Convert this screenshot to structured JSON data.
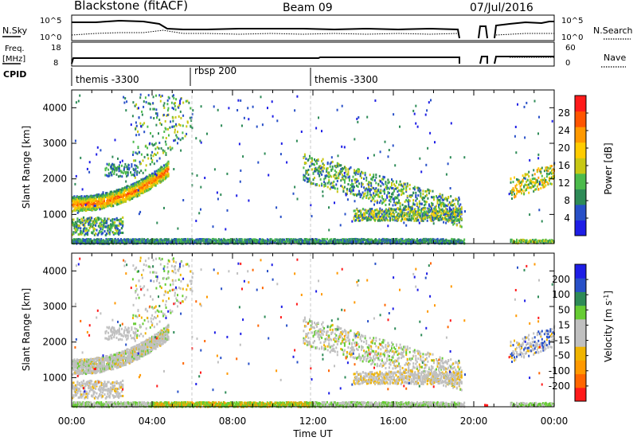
{
  "header": {
    "station": "Blackstone (fitACF)",
    "beam": "Beam 09",
    "date": "07/Jul/2016"
  },
  "top_panels": {
    "nsky_label": "N.Sky",
    "nsearch_label": "N.Search",
    "freq_label_1": "Freq.",
    "freq_label_2": "[MHz]",
    "nave_label": "Nave",
    "cpid_label": "CPID",
    "nsky_ticks": [
      "10^5",
      "10^0"
    ],
    "nsearch_ticks": [
      "10^5",
      "10^0"
    ],
    "freq_ticks": [
      "18",
      "8"
    ],
    "nave_ticks": [
      "60",
      "0"
    ]
  },
  "cpid": {
    "segments": [
      {
        "label": "themis -3300",
        "start_hour": 0
      },
      {
        "label": "rbsp 200",
        "start_hour": 6
      },
      {
        "label": "themis -3300",
        "start_hour": 12
      }
    ]
  },
  "colors": {
    "power": [
      "#1e1ee6",
      "#2850c8",
      "#2e8b57",
      "#4cbb4c",
      "#c8c814",
      "#ffcc00",
      "#ff9900",
      "#ff5500",
      "#ff1a1a"
    ],
    "velocity": [
      "#ff1a1a",
      "#ff6600",
      "#ff9900",
      "#f0b400",
      "#c0c0c0",
      "#c0c0c0",
      "#66cc33",
      "#2e8b57",
      "#2850c8",
      "#1e1ee6"
    ],
    "gray_fill": "#c0c0c0"
  },
  "chart_data": [
    {
      "type": "heatmap",
      "name": "Power",
      "xlabel": "",
      "ylabel": "Slant Range [km]",
      "xlim_hours": [
        0,
        24
      ],
      "ylim": [
        180,
        4500
      ],
      "y_ticks": [
        1000,
        2000,
        3000,
        4000
      ],
      "colorbar_label": "Power [dB]",
      "colorbar_ticks": [
        "4",
        "8",
        "12",
        "16",
        "20",
        "24",
        "28"
      ],
      "colorbar_range": [
        0,
        30
      ],
      "regions": [
        {
          "t": [
            0.0,
            4.8
          ],
          "r": [
            1150,
            1650
          ],
          "desc": "intense echo band rising to ~2400 km",
          "level": 20
        },
        {
          "t": [
            3.0,
            6.0
          ],
          "r": [
            2000,
            4400
          ],
          "desc": "scatter extending to 4400 km",
          "level": 8
        },
        {
          "t": [
            11.5,
            19.4
          ],
          "r": [
            700,
            2400
          ],
          "desc": "descending echo band",
          "level": 8
        },
        {
          "t": [
            0.0,
            19.5
          ],
          "r": [
            200,
            330
          ],
          "desc": "near-range ground/sea scatter",
          "level": 6
        },
        {
          "t": [
            21.8,
            24.0
          ],
          "r": [
            1500,
            2400
          ],
          "desc": "late-day echoes",
          "level": 10
        }
      ]
    },
    {
      "type": "heatmap",
      "name": "Velocity",
      "xlabel": "Time UT",
      "ylabel": "Slant Range [km]",
      "xlim_hours": [
        0,
        24
      ],
      "ylim": [
        180,
        4500
      ],
      "y_ticks": [
        1000,
        2000,
        3000,
        4000
      ],
      "x_ticks": [
        "00:00",
        "04:00",
        "08:00",
        "12:00",
        "16:00",
        "20:00",
        "00:00"
      ],
      "colorbar_label": "Velocity [m s^-1]",
      "colorbar_ticks": [
        "-200",
        "-100",
        "-50",
        "-15",
        "15",
        "50",
        "100",
        "200"
      ],
      "colorbar_range": [
        -250,
        250
      ]
    }
  ]
}
